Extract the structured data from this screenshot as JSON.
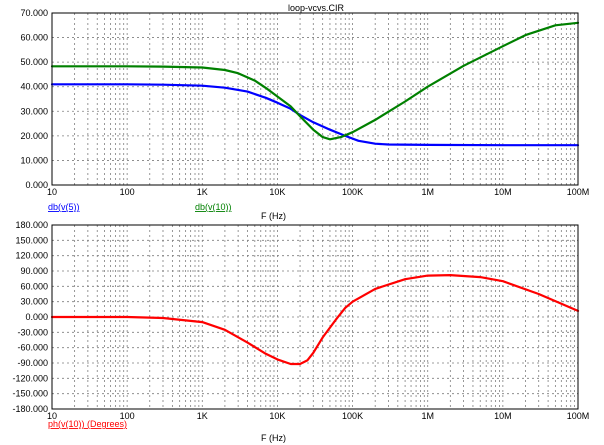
{
  "title": "loop-vcvs.CIR",
  "colors": {
    "db5": "#0000ff",
    "db10": "#008000",
    "ph10": "#ff0000",
    "grid": "#7f7f7f"
  },
  "chart_data": [
    {
      "type": "line",
      "x_scale": "log",
      "xlim": [
        10,
        100000000
      ],
      "ylim": [
        0,
        70
      ],
      "xlabel": "F (Hz)",
      "ylabel": "",
      "grid": true,
      "legend": "bottom-left",
      "x_ticks": [
        10,
        100,
        1000,
        10000,
        100000,
        1000000,
        10000000,
        100000000
      ],
      "x_tick_labels": [
        "10",
        "100",
        "1K",
        "10K",
        "100K",
        "1M",
        "10M",
        "100M"
      ],
      "y_ticks": [
        0,
        10,
        20,
        30,
        40,
        50,
        60,
        70
      ],
      "y_tick_labels": [
        "0.000",
        "10.000",
        "20.000",
        "30.000",
        "40.000",
        "50.000",
        "60.000",
        "70.000"
      ],
      "series": [
        {
          "name": "db(v(5))",
          "color": "#0000ff",
          "x": [
            10,
            100,
            300,
            1000,
            2000,
            4000,
            7000,
            10000,
            15000,
            20000,
            30000,
            50000,
            80000,
            120000,
            200000,
            300000,
            1000000,
            10000000,
            100000000
          ],
          "y": [
            41,
            41,
            40.8,
            40.4,
            39.6,
            38,
            35.5,
            33.5,
            31,
            28.5,
            25.5,
            22.5,
            20,
            18,
            16.8,
            16.5,
            16.3,
            16.2,
            16.2
          ]
        },
        {
          "name": "db(v(10))",
          "color": "#008000",
          "x": [
            10,
            100,
            300,
            1000,
            2000,
            3000,
            5000,
            7000,
            10000,
            15000,
            20000,
            30000,
            40000,
            50000,
            70000,
            100000,
            200000,
            500000,
            1000000,
            3000000,
            10000000,
            20000000,
            50000000,
            100000000
          ],
          "y": [
            48.3,
            48.3,
            48.2,
            47.8,
            46.8,
            45.5,
            42.5,
            39.5,
            36,
            32,
            28,
            22.5,
            19.5,
            18.6,
            19.5,
            21.5,
            26.5,
            34,
            40,
            48.5,
            56.5,
            61,
            65,
            66
          ]
        }
      ]
    },
    {
      "type": "line",
      "x_scale": "log",
      "xlim": [
        10,
        100000000
      ],
      "ylim": [
        -180,
        180
      ],
      "xlabel": "F (Hz)",
      "ylabel": "",
      "grid": true,
      "legend": "bottom-left",
      "x_ticks": [
        10,
        100,
        1000,
        10000,
        100000,
        1000000,
        10000000,
        100000000
      ],
      "x_tick_labels": [
        "10",
        "100",
        "1K",
        "10K",
        "100K",
        "1M",
        "10M",
        "100M"
      ],
      "y_ticks": [
        -180,
        -150,
        -120,
        -90,
        -60,
        -30,
        0,
        30,
        60,
        90,
        120,
        150,
        180
      ],
      "y_tick_labels": [
        "-180.000",
        "-150.000",
        "-120.000",
        "-90.000",
        "-60.000",
        "-30.000",
        "0.000",
        "30.000",
        "60.000",
        "90.000",
        "120.000",
        "150.000",
        "180.000"
      ],
      "series": [
        {
          "name": "ph(v(10)) (Degrees)",
          "color": "#ff0000",
          "x": [
            10,
            100,
            300,
            1000,
            2000,
            4000,
            7000,
            10000,
            15000,
            20000,
            25000,
            30000,
            40000,
            60000,
            80000,
            100000,
            200000,
            500000,
            1000000,
            2000000,
            5000000,
            10000000,
            30000000,
            100000000
          ],
          "y": [
            0,
            0,
            -2,
            -10,
            -25,
            -50,
            -72,
            -83,
            -92,
            -92,
            -85,
            -70,
            -40,
            -5,
            18,
            30,
            55,
            74,
            81,
            82,
            78,
            70,
            45,
            12
          ]
        }
      ]
    }
  ]
}
